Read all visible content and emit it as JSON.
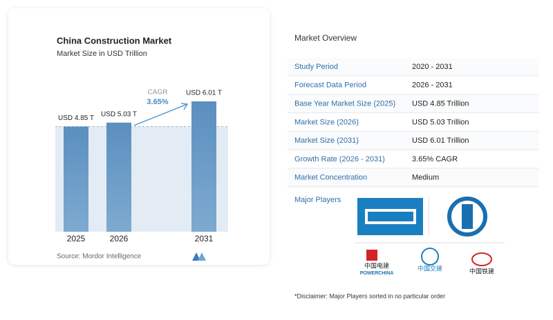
{
  "chart_data": {
    "type": "bar",
    "title": "China Construction Market",
    "subtitle": "Market Size in USD Trillion",
    "categories": [
      "2025",
      "2026",
      "2031"
    ],
    "values": [
      4.85,
      5.03,
      6.01
    ],
    "value_labels": [
      "USD 4.85 T",
      "USD 5.03 T",
      "USD 6.01 T"
    ],
    "color": "#5b8fbf",
    "annotation": {
      "label": "CAGR",
      "value": "3.65%"
    },
    "source": "Source:  Mordor Intelligence"
  },
  "overview": {
    "title": "Market Overview",
    "rows": [
      [
        "Study Period",
        "2020 - 2031"
      ],
      [
        "Forecast Data Period",
        "2026 - 2031"
      ],
      [
        "Base Year Market Size (2025)",
        "USD 4.85 Trillion"
      ],
      [
        "Market Size (2026)",
        "USD 5.03 Trillion"
      ],
      [
        "Market Size (2031)",
        "USD 6.01 Trillion"
      ],
      [
        "Growth Rate (2026 - 2031)",
        "3.65% CAGR"
      ],
      [
        "Market Concentration",
        "Medium"
      ]
    ],
    "players_label": "Major Players",
    "logos": [
      "中国电建",
      "POWERCHINA",
      "中国交建",
      "中国铁建"
    ],
    "disclaimer": "*Disclaimer: Major Players sorted in no particular order"
  }
}
